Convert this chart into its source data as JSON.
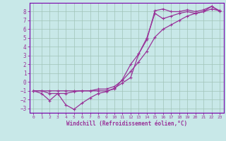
{
  "xlabel": "Windchill (Refroidissement éolien,°C)",
  "background_color": "#c8e8e8",
  "grid_color": "#a0c4b8",
  "line_color": "#993399",
  "spine_color": "#7700aa",
  "xlim": [
    -0.5,
    23.5
  ],
  "ylim": [
    -3.5,
    9.0
  ],
  "xticks": [
    0,
    1,
    2,
    3,
    4,
    5,
    6,
    7,
    8,
    9,
    10,
    11,
    12,
    13,
    14,
    15,
    16,
    17,
    18,
    19,
    20,
    21,
    22,
    23
  ],
  "yticks": [
    -3,
    -2,
    -1,
    0,
    1,
    2,
    3,
    4,
    5,
    6,
    7,
    8
  ],
  "curve1_x": [
    0,
    1,
    2,
    3,
    4,
    5,
    6,
    7,
    8,
    9,
    10,
    11,
    12,
    13,
    14,
    15,
    16,
    17,
    18,
    19,
    20,
    21,
    22,
    23
  ],
  "curve1_y": [
    -1,
    -1.3,
    -2.1,
    -1.3,
    -2.6,
    -3.1,
    -2.4,
    -1.8,
    -1.3,
    -1.1,
    -0.7,
    -0.1,
    0.5,
    3.2,
    4.8,
    8.1,
    8.3,
    8.0,
    8.0,
    8.2,
    8.0,
    8.2,
    8.6,
    8.0
  ],
  "curve2_x": [
    0,
    1,
    2,
    3,
    4,
    5,
    6,
    7,
    8,
    9,
    10,
    11,
    12,
    13,
    14,
    15,
    16,
    17,
    18,
    19,
    20,
    21,
    22,
    23
  ],
  "curve2_y": [
    -1,
    -1,
    -1.3,
    -1.3,
    -1.3,
    -1.1,
    -1,
    -1,
    -1,
    -1,
    -0.8,
    0.3,
    2.0,
    3.2,
    5.0,
    7.8,
    7.2,
    7.5,
    7.8,
    8.0,
    7.8,
    8.0,
    8.6,
    8.1
  ],
  "curve3_x": [
    0,
    1,
    2,
    3,
    4,
    5,
    6,
    7,
    8,
    9,
    10,
    11,
    12,
    13,
    14,
    15,
    16,
    17,
    18,
    19,
    20,
    21,
    22,
    23
  ],
  "curve3_y": [
    -1,
    -1,
    -1,
    -1,
    -1,
    -1,
    -1,
    -1,
    -0.8,
    -0.8,
    -0.5,
    0.2,
    1.2,
    2.3,
    3.5,
    5.1,
    6.0,
    6.5,
    7.0,
    7.5,
    7.8,
    8.0,
    8.3,
    8.1
  ]
}
